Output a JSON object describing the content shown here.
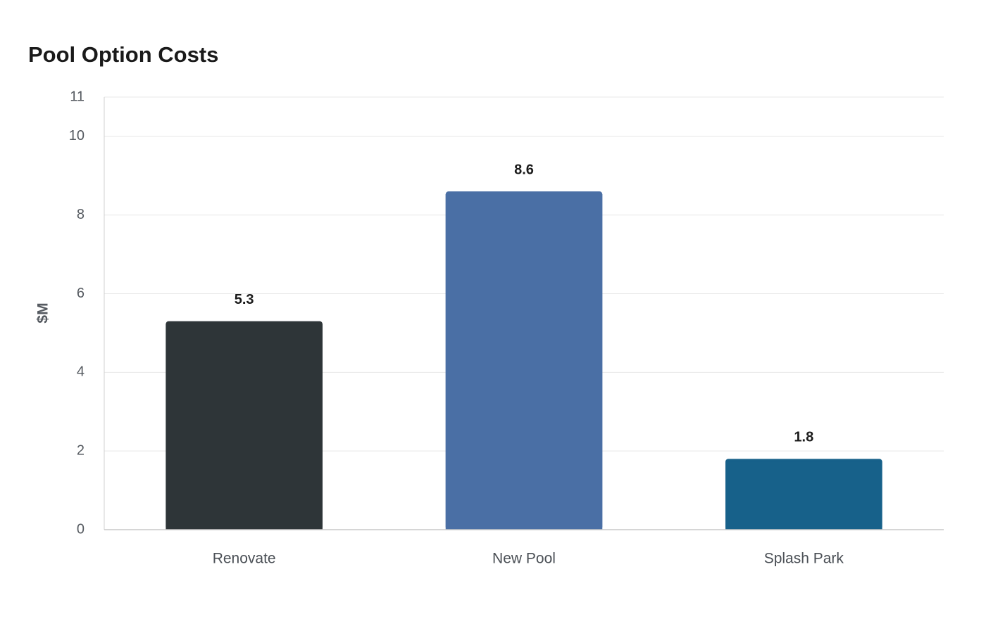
{
  "chart_data": {
    "type": "bar",
    "title": "Pool Option Costs",
    "y_label": "$M",
    "categories": [
      "Renovate",
      "New Pool",
      "Splash Park"
    ],
    "values": [
      5.3,
      8.6,
      1.8
    ],
    "colors": [
      "#2e3538",
      "#4a6fa5",
      "#17618a"
    ],
    "ylim": [
      0,
      11
    ],
    "yticks": [
      0,
      2,
      4,
      6,
      8,
      10,
      11
    ],
    "grid": true
  }
}
